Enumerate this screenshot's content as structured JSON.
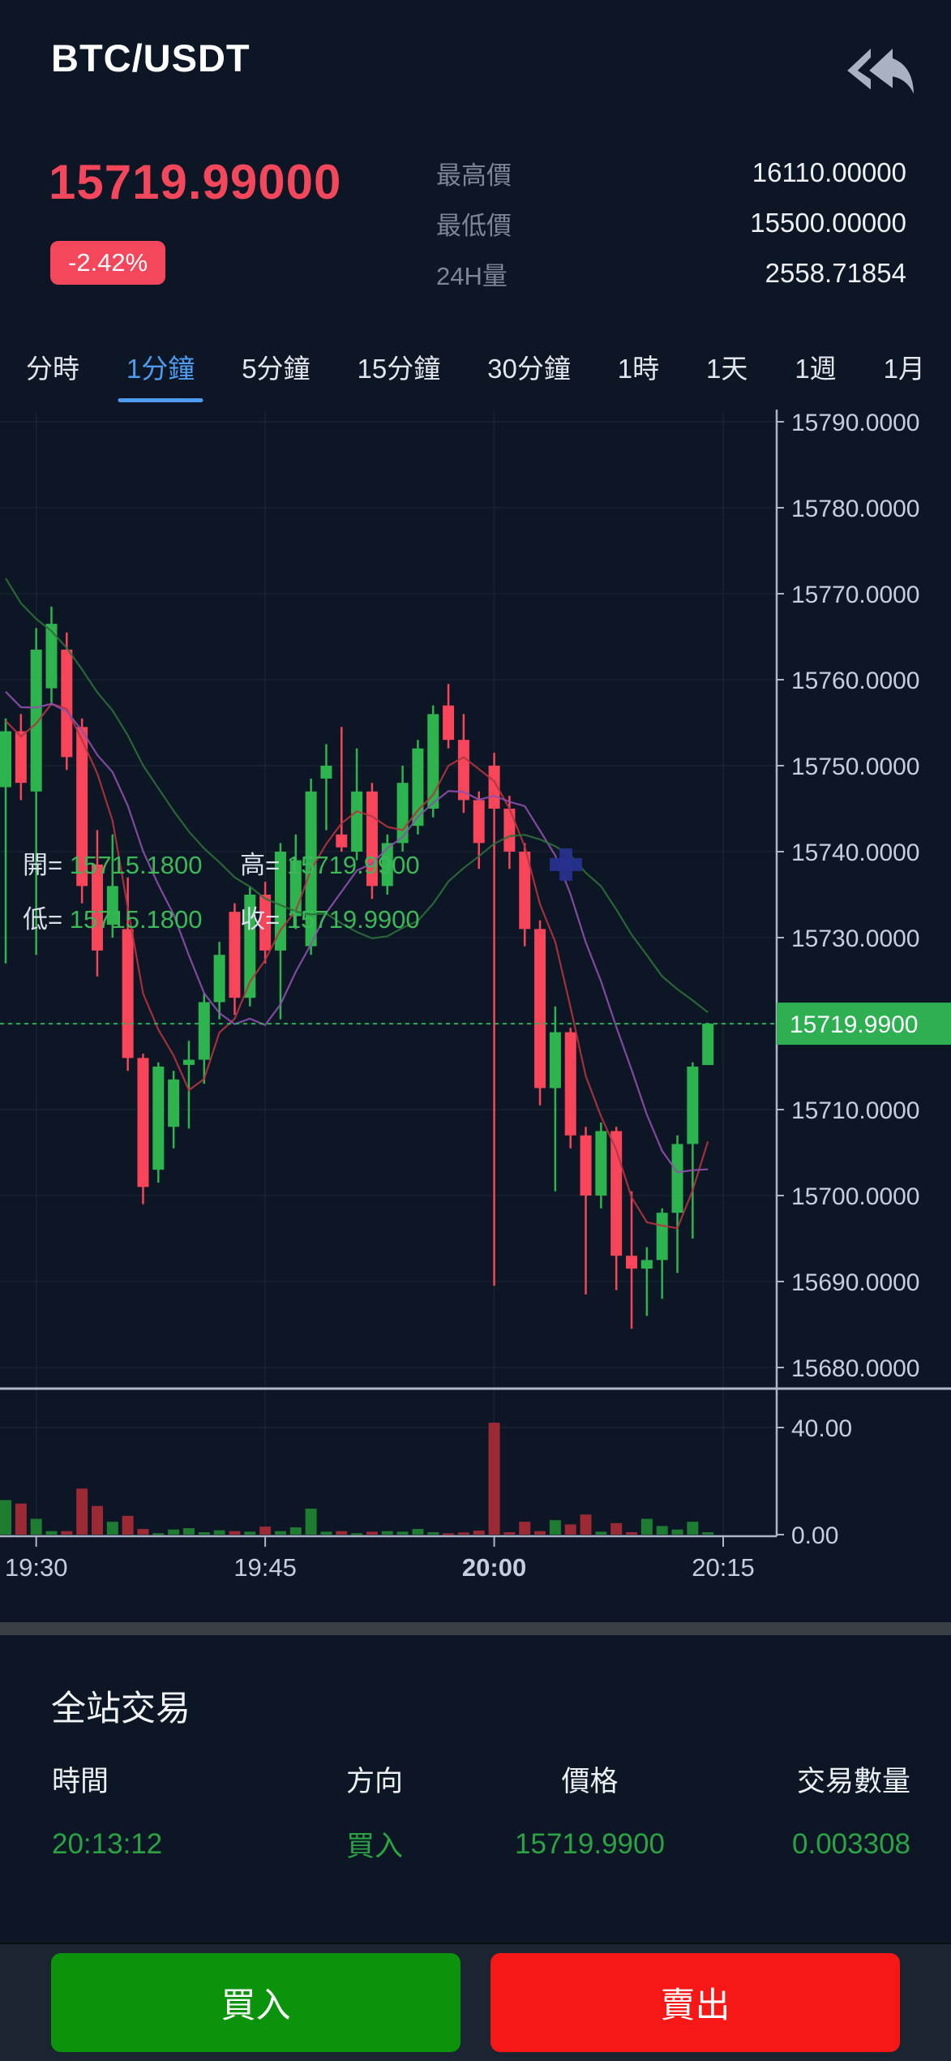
{
  "header": {
    "symbol": "BTC/USDT",
    "back_icon": "reply-back-icon"
  },
  "ticker": {
    "last_price": "15719.99000",
    "change_pct": "-2.42%",
    "stats": [
      {
        "label": "最高價",
        "value": "16110.00000"
      },
      {
        "label": "最低價",
        "value": "15500.00000"
      },
      {
        "label": "24H量",
        "value": "2558.71854"
      }
    ]
  },
  "intervals": {
    "active_index": 1,
    "items": [
      "分時",
      "1分鐘",
      "5分鐘",
      "15分鐘",
      "30分鐘",
      "1時",
      "1天",
      "1週",
      "1月"
    ]
  },
  "chart": {
    "legend": [
      {
        "label": "開=",
        "value": "15715.1800"
      },
      {
        "label": "高=",
        "value": "15719.9900"
      },
      {
        "label": "低=",
        "value": "15715.1800"
      },
      {
        "label": "收=",
        "value": "15719.9900"
      }
    ],
    "price_tag": "15719.9900",
    "colors": {
      "up": "#2eb44e",
      "down": "#f8455a",
      "vol_up": "#1e7c33",
      "vol_down": "#9c2a35",
      "tag_bg": "#2daf52",
      "accent_blue": "#4f9bef",
      "marker_blue": "#27308d",
      "ma_colors": [
        "#b5333f",
        "#8e4fae",
        "#2c6e38"
      ]
    },
    "chart_data": {
      "type": "candlestick",
      "time_start": "19:28",
      "interval_minutes": 1,
      "y_ticks": [
        15790,
        15780,
        15770,
        15760,
        15750,
        15740,
        15730,
        15720,
        15710,
        15700,
        15690,
        15680
      ],
      "y_tick_covered_by_tag": 15720,
      "current_price": 15719.99,
      "x_ticks": [
        {
          "label": "19:30",
          "index": 2,
          "bold": false
        },
        {
          "label": "19:45",
          "index": 17,
          "bold": false
        },
        {
          "label": "20:00",
          "index": 32,
          "bold": true
        },
        {
          "label": "20:15",
          "index": 47,
          "bold": false
        }
      ],
      "vol_ticks": [
        {
          "label": "40.00",
          "value": 40
        },
        {
          "label": "0.00",
          "value": 0
        }
      ],
      "candles": [
        [
          15747.5,
          15755.5,
          15727.0,
          15754.0
        ],
        [
          15754.0,
          15756.0,
          15746.0,
          15748.0
        ],
        [
          15747.0,
          15766.0,
          15728.0,
          15763.5
        ],
        [
          15759.0,
          15768.5,
          15757.0,
          15766.5
        ],
        [
          15763.5,
          15765.5,
          15749.5,
          15751.0
        ],
        [
          15754.5,
          15755.5,
          15734.0,
          15736.0
        ],
        [
          15738.5,
          15742.5,
          15725.5,
          15728.5
        ],
        [
          15731.5,
          15742.0,
          15730.0,
          15736.0
        ],
        [
          15731.0,
          15737.0,
          15714.5,
          15716.0
        ],
        [
          15716.0,
          15716.5,
          15699.0,
          15701.0
        ],
        [
          15703.0,
          15715.5,
          15701.5,
          15715.0
        ],
        [
          15708.0,
          15714.5,
          15705.5,
          15713.5
        ],
        [
          15715.2,
          15718.0,
          15707.8,
          15715.8
        ],
        [
          15715.8,
          15723.5,
          15713.0,
          15722.5
        ],
        [
          15722.5,
          15729.5,
          15720.5,
          15728.0
        ],
        [
          15733.0,
          15734.0,
          15721.0,
          15723.0
        ],
        [
          15723.0,
          15736.0,
          15722.0,
          15735.0
        ],
        [
          15735.0,
          15736.5,
          15727.0,
          15728.5
        ],
        [
          15728.5,
          15741.0,
          15720.5,
          15740.0
        ],
        [
          15732.5,
          15742.0,
          15731.0,
          15739.0
        ],
        [
          15729.0,
          15748.5,
          15728.0,
          15747.0
        ],
        [
          15748.5,
          15752.5,
          15742.5,
          15750.0
        ],
        [
          15742.0,
          15754.5,
          15740.0,
          15740.5
        ],
        [
          15740.0,
          15752.0,
          15739.0,
          15747.0
        ],
        [
          15747.0,
          15748.0,
          15734.5,
          15736.0
        ],
        [
          15736.0,
          15742.0,
          15735.0,
          15741.0
        ],
        [
          15741.0,
          15750.0,
          15740.0,
          15748.0
        ],
        [
          15743.0,
          15753.0,
          15742.0,
          15752.0
        ],
        [
          15745.0,
          15757.0,
          15744.0,
          15756.0
        ],
        [
          15757.0,
          15759.5,
          15752.0,
          15753.0
        ],
        [
          15753.0,
          15756.0,
          15744.5,
          15746.0
        ],
        [
          15746.0,
          15747.0,
          15738.0,
          15741.0
        ],
        [
          15750.0,
          15751.5,
          15689.5,
          15745.0
        ],
        [
          15745.0,
          15746.5,
          15738.0,
          15740.0
        ],
        [
          15740.0,
          15741.0,
          15729.0,
          15731.0
        ],
        [
          15731.0,
          15732.0,
          15710.5,
          15712.5
        ],
        [
          15712.5,
          15722.0,
          15700.5,
          15719.0
        ],
        [
          15719.0,
          15719.5,
          15705.5,
          15707.0
        ],
        [
          15707.0,
          15708.0,
          15688.5,
          15700.0
        ],
        [
          15700.0,
          15708.5,
          15698.5,
          15707.5
        ],
        [
          15707.5,
          15708.0,
          15689.0,
          15693.0
        ],
        [
          15693.0,
          15700.5,
          15684.5,
          15691.5
        ],
        [
          15691.5,
          15694.0,
          15686.0,
          15692.5
        ],
        [
          15692.5,
          15698.5,
          15688.0,
          15698.0
        ],
        [
          15698.0,
          15707.0,
          15691.0,
          15706.0
        ],
        [
          15706.0,
          15715.5,
          15695.0,
          15715.0
        ],
        [
          15715.18,
          15719.99,
          15715.18,
          15719.99
        ]
      ],
      "volumes": [
        12.9,
        11.6,
        5.9,
        1.3,
        1.3,
        17.2,
        10.7,
        4.8,
        7.0,
        2.1,
        0.5,
        1.9,
        2.4,
        0.9,
        1.6,
        1.3,
        1.1,
        3.0,
        1.3,
        2.7,
        9.7,
        1.1,
        1.3,
        0.5,
        1.1,
        1.3,
        1.1,
        2.1,
        0.9,
        0.5,
        0.8,
        1.5,
        41.8,
        0.9,
        4.8,
        1.3,
        5.4,
        3.8,
        7.5,
        1.1,
        4.3,
        0.9,
        5.9,
        3.2,
        1.9,
        4.8,
        0.9
      ],
      "ma_periods": [
        5,
        10,
        20
      ],
      "ma_seed": [
        15812,
        15806,
        15800,
        15795,
        15790,
        15786,
        15782,
        15778,
        15774,
        15771,
        15768,
        15766,
        15764,
        15762,
        15760,
        15758,
        15757,
        15756,
        15755,
        15754
      ],
      "marker": {
        "index": 36.7,
        "price": 15738.5
      }
    }
  },
  "trades": {
    "title": "全站交易",
    "headers": [
      "時間",
      "方向",
      "價格",
      "交易數量"
    ],
    "rows": [
      [
        "20:13:12",
        "買入",
        "15719.9900",
        "0.003308"
      ]
    ]
  },
  "actions": {
    "buy": "買入",
    "sell": "賣出"
  }
}
